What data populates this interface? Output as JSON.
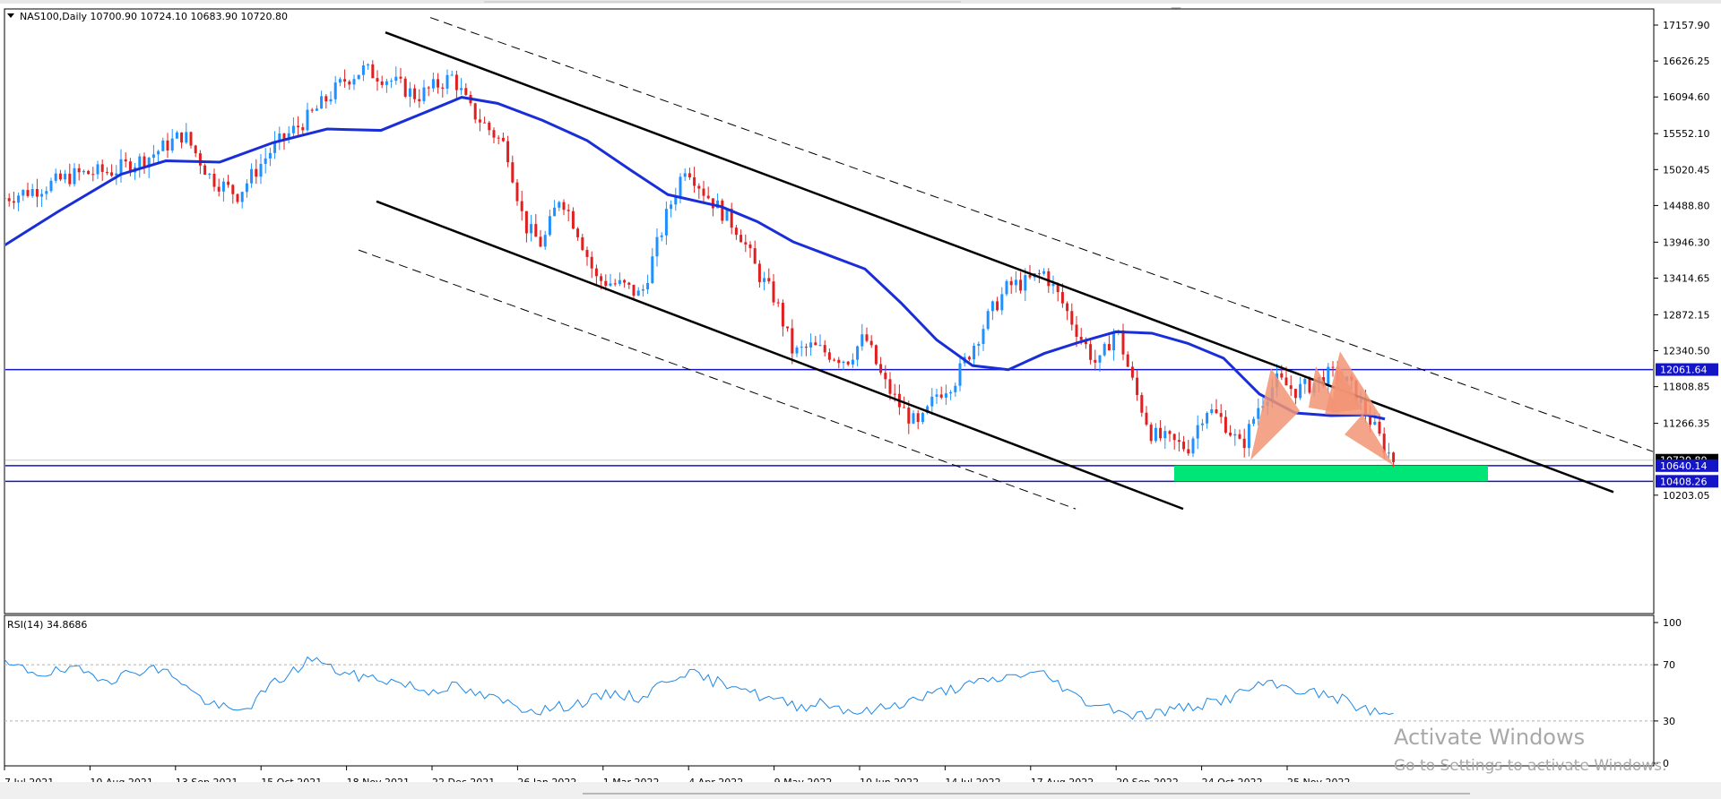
{
  "window": {
    "symbol_header": "NAS100,Daily  10700.90 10724.10 10683.90 10720.80"
  },
  "price_axis": {
    "ticks": [
      "17157.90",
      "16626.25",
      "16094.60",
      "15552.10",
      "15020.45",
      "14488.80",
      "13946.30",
      "13414.65",
      "12872.15",
      "12340.50",
      "11808.85",
      "11266.35",
      "10203.05"
    ],
    "labels": {
      "current": "10720.80",
      "level_1": "12061.64",
      "level_2": "10640.14",
      "level_3": "10408.26"
    }
  },
  "rsi": {
    "header": "RSI(14) 34.8686",
    "ticks": [
      "100",
      "70",
      "30",
      "0"
    ]
  },
  "time_axis": {
    "dates": [
      "7 Jul 2021",
      "10 Aug 2021",
      "13 Sep 2021",
      "15 Oct 2021",
      "18 Nov 2021",
      "22 Dec 2021",
      "26 Jan 2022",
      "1 Mar 2022",
      "4 Apr 2022",
      "9 May 2022",
      "10 Jun 2022",
      "14 Jul 2022",
      "17 Aug 2022",
      "20 Sep 2022",
      "24 Oct 2022",
      "25 Nov 2022"
    ]
  },
  "watermark": {
    "title": "Activate Windows",
    "subtitle": "Go to Settings to activate Windows."
  },
  "chart_data": {
    "type": "candlestick",
    "symbol": "NAS100",
    "timeframe": "Daily",
    "ohlc_last": {
      "open": 10700.9,
      "high": 10724.1,
      "low": 10683.9,
      "close": 10720.8
    },
    "ylim": [
      10000,
      17400
    ],
    "moving_average_path": [
      [
        0,
        13900
      ],
      [
        60,
        14400
      ],
      [
        130,
        14950
      ],
      [
        180,
        15150
      ],
      [
        240,
        15130
      ],
      [
        300,
        15420
      ],
      [
        360,
        15620
      ],
      [
        420,
        15600
      ],
      [
        470,
        15870
      ],
      [
        510,
        16090
      ],
      [
        550,
        16000
      ],
      [
        600,
        15750
      ],
      [
        650,
        15450
      ],
      [
        700,
        15000
      ],
      [
        740,
        14650
      ],
      [
        800,
        14470
      ],
      [
        840,
        14250
      ],
      [
        880,
        13950
      ],
      [
        920,
        13750
      ],
      [
        960,
        13550
      ],
      [
        1000,
        13050
      ],
      [
        1040,
        12500
      ],
      [
        1080,
        12120
      ],
      [
        1120,
        12060
      ],
      [
        1160,
        12300
      ],
      [
        1200,
        12470
      ],
      [
        1240,
        12620
      ],
      [
        1280,
        12600
      ],
      [
        1320,
        12450
      ],
      [
        1360,
        12230
      ],
      [
        1400,
        11700
      ],
      [
        1440,
        11420
      ],
      [
        1480,
        11380
      ],
      [
        1520,
        11390
      ],
      [
        1540,
        11330
      ]
    ],
    "close_path": [
      [
        0,
        14600
      ],
      [
        40,
        14750
      ],
      [
        80,
        14950
      ],
      [
        120,
        15000
      ],
      [
        160,
        15200
      ],
      [
        200,
        15550
      ],
      [
        230,
        14900
      ],
      [
        260,
        14650
      ],
      [
        300,
        15350
      ],
      [
        340,
        15800
      ],
      [
        380,
        16350
      ],
      [
        400,
        16500
      ],
      [
        430,
        16350
      ],
      [
        460,
        16100
      ],
      [
        500,
        16400
      ],
      [
        520,
        15900
      ],
      [
        560,
        15350
      ],
      [
        580,
        14200
      ],
      [
        600,
        13900
      ],
      [
        620,
        14650
      ],
      [
        640,
        14100
      ],
      [
        660,
        13400
      ],
      [
        690,
        13300
      ],
      [
        710,
        13150
      ],
      [
        740,
        14400
      ],
      [
        760,
        15100
      ],
      [
        780,
        14700
      ],
      [
        800,
        14400
      ],
      [
        820,
        14100
      ],
      [
        840,
        13500
      ],
      [
        860,
        13100
      ],
      [
        880,
        12300
      ],
      [
        900,
        12400
      ],
      [
        920,
        12300
      ],
      [
        940,
        12200
      ],
      [
        960,
        12550
      ],
      [
        980,
        11900
      ],
      [
        1000,
        11500
      ],
      [
        1020,
        11200
      ],
      [
        1040,
        11700
      ],
      [
        1060,
        11900
      ],
      [
        1080,
        12400
      ],
      [
        1100,
        12900
      ],
      [
        1120,
        13300
      ],
      [
        1140,
        13350
      ],
      [
        1160,
        13500
      ],
      [
        1180,
        13050
      ],
      [
        1200,
        12550
      ],
      [
        1220,
        12100
      ],
      [
        1240,
        12700
      ],
      [
        1260,
        11800
      ],
      [
        1280,
        11100
      ],
      [
        1300,
        11000
      ],
      [
        1320,
        10900
      ],
      [
        1340,
        11500
      ],
      [
        1360,
        11300
      ],
      [
        1380,
        10900
      ],
      [
        1400,
        11550
      ],
      [
        1420,
        11900
      ],
      [
        1440,
        11750
      ],
      [
        1460,
        11850
      ],
      [
        1480,
        12000
      ],
      [
        1500,
        11850
      ],
      [
        1520,
        11400
      ],
      [
        1540,
        10900
      ],
      [
        1550,
        10720
      ]
    ],
    "rsi_path": [
      [
        0,
        70
      ],
      [
        40,
        64
      ],
      [
        80,
        66
      ],
      [
        120,
        60
      ],
      [
        160,
        68
      ],
      [
        190,
        63
      ],
      [
        210,
        50
      ],
      [
        230,
        42
      ],
      [
        260,
        36
      ],
      [
        280,
        44
      ],
      [
        300,
        57
      ],
      [
        320,
        64
      ],
      [
        345,
        76
      ],
      [
        360,
        68
      ],
      [
        390,
        62
      ],
      [
        420,
        60
      ],
      [
        450,
        56
      ],
      [
        470,
        51
      ],
      [
        500,
        55
      ],
      [
        520,
        50
      ],
      [
        550,
        45
      ],
      [
        580,
        39
      ],
      [
        600,
        38
      ],
      [
        620,
        40
      ],
      [
        650,
        44
      ],
      [
        680,
        50
      ],
      [
        710,
        46
      ],
      [
        740,
        60
      ],
      [
        760,
        65
      ],
      [
        790,
        58
      ],
      [
        820,
        56
      ],
      [
        840,
        48
      ],
      [
        870,
        43
      ],
      [
        890,
        40
      ],
      [
        910,
        44
      ],
      [
        940,
        38
      ],
      [
        960,
        36
      ],
      [
        990,
        41
      ],
      [
        1020,
        46
      ],
      [
        1050,
        52
      ],
      [
        1080,
        56
      ],
      [
        1110,
        60
      ],
      [
        1140,
        64
      ],
      [
        1160,
        63
      ],
      [
        1180,
        55
      ],
      [
        1200,
        45
      ],
      [
        1220,
        42
      ],
      [
        1240,
        39
      ],
      [
        1260,
        34
      ],
      [
        1280,
        35
      ],
      [
        1310,
        39
      ],
      [
        1340,
        42
      ],
      [
        1370,
        47
      ],
      [
        1400,
        56
      ],
      [
        1430,
        54
      ],
      [
        1460,
        50
      ],
      [
        1490,
        46
      ],
      [
        1510,
        40
      ],
      [
        1530,
        36
      ],
      [
        1550,
        35
      ]
    ],
    "horizontal_levels": [
      12061.64,
      10640.14,
      10408.26
    ],
    "current_price": 10720.8,
    "rsi_value": 34.8686,
    "rsi_levels": [
      70,
      30
    ],
    "channel_upper": [
      [
        430,
        17050
      ],
      [
        1800,
        10250
      ]
    ],
    "channel_lower": [
      [
        420,
        14550
      ],
      [
        1320,
        10000
      ]
    ],
    "channel_upper_dashed": [
      [
        480,
        17270
      ],
      [
        1850,
        10820
      ]
    ],
    "channel_lower_dashed": [
      [
        400,
        13830
      ],
      [
        1200,
        10000
      ]
    ],
    "support_zone": [
      10640.14,
      10408.26
    ],
    "zone_x_range": [
      1310,
      1660
    ],
    "colors": {
      "bull": "#1e90ff",
      "bear": "#e02020",
      "ma": "#1a2ed8",
      "level": "#1515c8",
      "zone": "#00e676",
      "pattern": "#f29474",
      "channel": "#000000",
      "rsi": "#1e88e5"
    }
  }
}
